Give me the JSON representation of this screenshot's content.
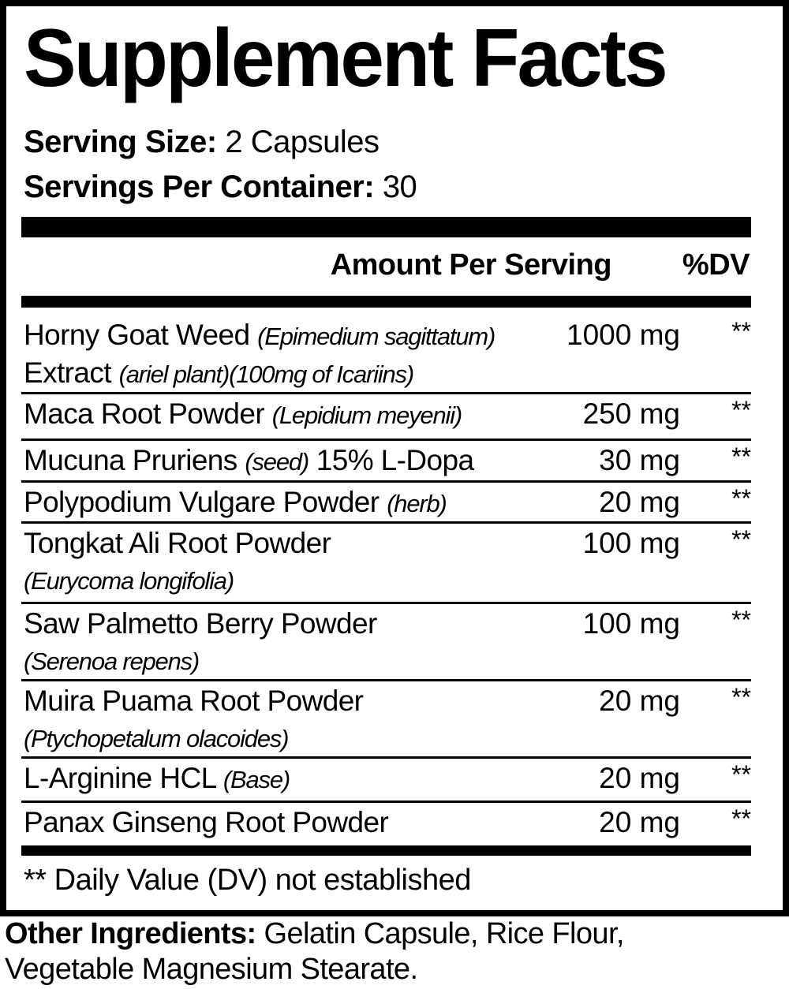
{
  "title": "Supplement Facts",
  "serving_size": {
    "label": "Serving Size:",
    "value": "2 Capsules"
  },
  "servings_per_container": {
    "label": "Servings Per Container:",
    "value": "30"
  },
  "header": {
    "amount": "Amount Per Serving",
    "dv": "%DV"
  },
  "ingredients": [
    {
      "name": "Horny Goat Weed",
      "latin": "(Epimedium sagittatum)",
      "line2": "Extract",
      "line2_italic": "(ariel plant)(100mg of Icariins)",
      "amount": "1000 mg",
      "dv": "**"
    },
    {
      "name": "Maca Root Powder",
      "latin": "(Lepidium meyenii)",
      "amount": "250 mg",
      "dv": "**"
    },
    {
      "name": "Mucuna Pruriens",
      "latin": "(seed)",
      "suffix": "15% L-Dopa",
      "amount": "30 mg",
      "dv": "**"
    },
    {
      "name": "Polypodium Vulgare Powder",
      "latin": "(herb)",
      "amount": "20 mg",
      "dv": "**"
    },
    {
      "name": "Tongkat Ali Root Powder",
      "line2_italic": "(Eurycoma longifolia)",
      "amount": "100 mg",
      "dv": "**"
    },
    {
      "name": "Saw Palmetto Berry Powder",
      "line2_italic": "(Serenoa repens)",
      "amount": "100 mg",
      "dv": "**"
    },
    {
      "name": "Muira Puama Root Powder",
      "line2_italic": "(Ptychopetalum olacoides)",
      "amount": "20 mg",
      "dv": "**"
    },
    {
      "name": "L-Arginine HCL",
      "latin": "(Base)",
      "amount": "20 mg",
      "dv": "**"
    },
    {
      "name": "Panax Ginseng Root Powder",
      "amount": "20 mg",
      "dv": "**"
    }
  ],
  "footnote": "** Daily Value (DV) not established",
  "other_ingredients": {
    "label": "Other Ingredients:",
    "line1": "Gelatin Capsule, Rice Flour,",
    "line2": "Vegetable Magnesium Stearate."
  }
}
